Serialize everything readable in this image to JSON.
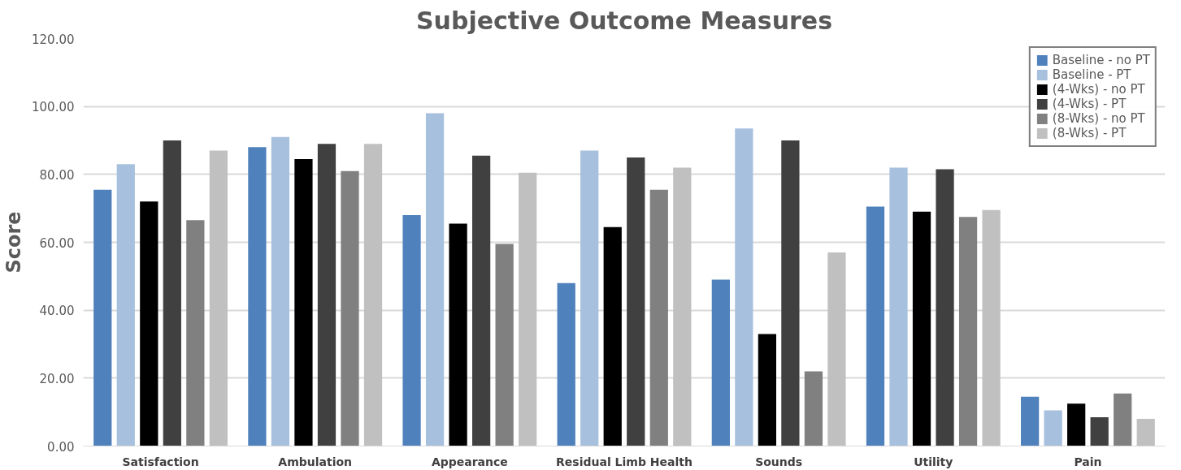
{
  "chart_data": {
    "type": "bar",
    "title": "Subjective Outcome Measures",
    "ylabel": "Score",
    "categories": [
      "Satisfaction",
      "Ambulation",
      "Appearance",
      "Residual Limb Health",
      "Sounds",
      "Utility",
      "Pain"
    ],
    "series": [
      {
        "name": "Baseline - no PT",
        "color": "#4f81bd",
        "values": [
          75.5,
          88,
          68,
          48,
          49,
          70.5,
          14.5
        ]
      },
      {
        "name": "Baseline - PT",
        "color": "#a7c0de",
        "values": [
          83,
          91,
          98,
          87,
          93.5,
          82,
          10.5
        ]
      },
      {
        "name": "(4-Wks) - no PT",
        "color": "#000000",
        "values": [
          72,
          84.5,
          65.5,
          64.5,
          33,
          69,
          12.5
        ]
      },
      {
        "name": "(4-Wks) - PT",
        "color": "#404040",
        "values": [
          90,
          89,
          85.5,
          85,
          90,
          81.5,
          8.5
        ]
      },
      {
        "name": "(8-Wks) - no PT",
        "color": "#808080",
        "values": [
          66.5,
          81,
          59.5,
          75.5,
          22,
          67.5,
          15.5
        ]
      },
      {
        "name": "(8-Wks) - PT",
        "color": "#c0c0c0",
        "values": [
          87,
          89,
          80.5,
          82,
          57,
          69.5,
          8
        ]
      }
    ],
    "ylim": [
      0,
      120
    ],
    "yticks": [
      {
        "value": 0,
        "label": "0.00"
      },
      {
        "value": 20,
        "label": "20.00"
      },
      {
        "value": 40,
        "label": "40.00"
      },
      {
        "value": 60,
        "label": "60.00"
      },
      {
        "value": 80,
        "label": "80.00"
      },
      {
        "value": 100,
        "label": "100.00"
      },
      {
        "value": 120,
        "label": "120.00"
      }
    ],
    "grid": "y",
    "legend": "top right"
  }
}
